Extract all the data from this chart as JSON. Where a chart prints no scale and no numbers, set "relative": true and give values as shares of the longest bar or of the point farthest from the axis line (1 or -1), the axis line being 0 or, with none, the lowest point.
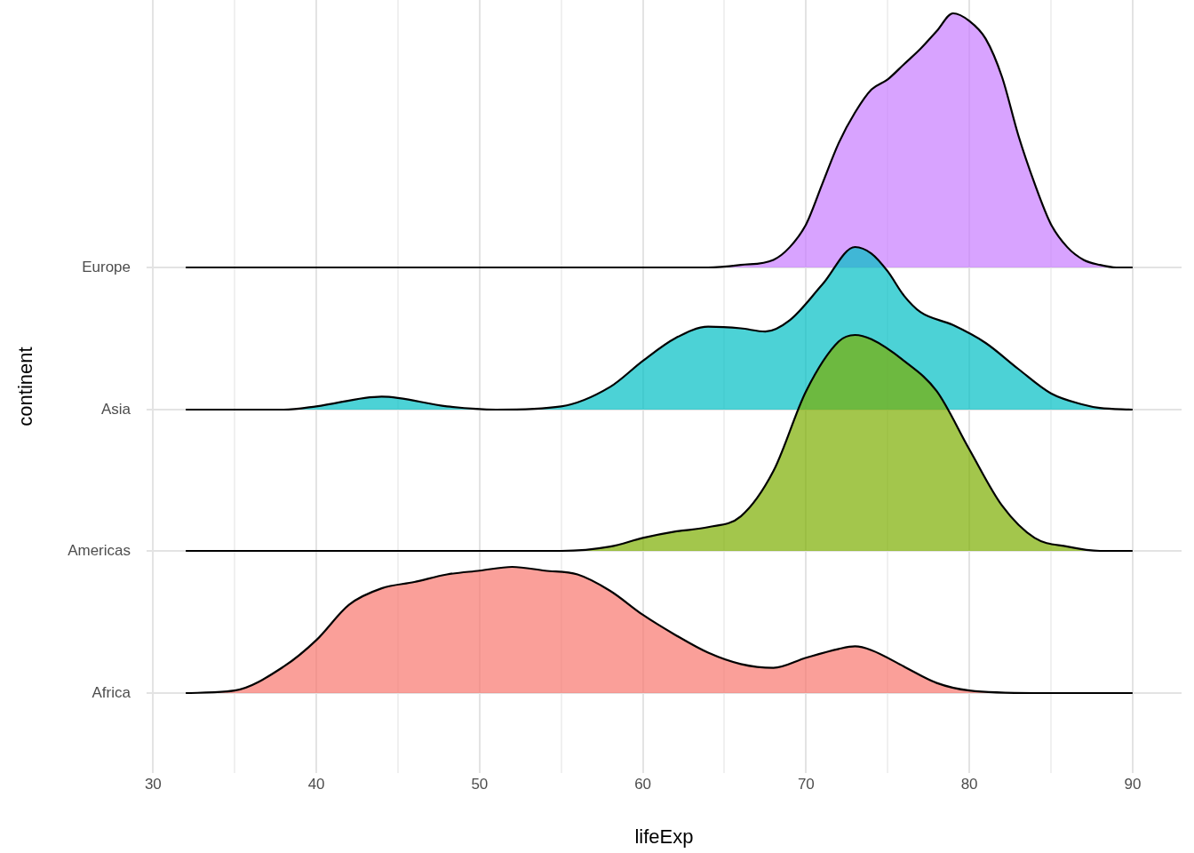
{
  "chart_data": [
    {
      "type": "area",
      "relative": true,
      "tick_labels": false,
      "xlim": [
        29.6,
        93
      ],
      "series": [
        {
          "name": "Europe",
          "color": "#c77cff",
          "x": [
            32,
            60,
            64,
            66,
            68,
            69,
            70,
            71,
            72,
            73,
            74,
            75,
            76,
            77,
            78,
            79,
            80,
            81,
            82,
            83,
            84,
            85,
            86,
            87,
            88,
            89,
            90
          ],
          "values": [
            0,
            0,
            0,
            0.01,
            0.03,
            0.08,
            0.17,
            0.33,
            0.49,
            0.61,
            0.7,
            0.74,
            0.8,
            0.86,
            0.93,
            1,
            0.97,
            0.9,
            0.75,
            0.52,
            0.33,
            0.17,
            0.08,
            0.03,
            0.01,
            0,
            0
          ]
        }
      ]
    },
    {
      "type": "area",
      "relative": true,
      "tick_labels": false,
      "xlim": [
        29.6,
        93
      ],
      "series": [
        {
          "name": "Asia",
          "color": "#00bfc4",
          "x": [
            32,
            38,
            40,
            44,
            48,
            51,
            55,
            58,
            60,
            62,
            64,
            66,
            67.5,
            69,
            71,
            73,
            74,
            75,
            76,
            77,
            79,
            81,
            83,
            85,
            87,
            88,
            90
          ],
          "values": [
            0,
            0,
            0.02,
            0.08,
            0.02,
            0,
            0.02,
            0.14,
            0.3,
            0.44,
            0.51,
            0.5,
            0.48,
            0.55,
            0.77,
            1,
            0.96,
            0.85,
            0.7,
            0.6,
            0.52,
            0.41,
            0.25,
            0.1,
            0.03,
            0.01,
            0
          ]
        }
      ]
    },
    {
      "type": "area",
      "relative": true,
      "tick_labels": false,
      "xlim": [
        29.6,
        93
      ],
      "series": [
        {
          "name": "Americas",
          "color": "#7cae00",
          "x": [
            32,
            55,
            58,
            60,
            62,
            64,
            66,
            68,
            70,
            72,
            73,
            74,
            76,
            78,
            80,
            82,
            84,
            86,
            88,
            90
          ],
          "values": [
            0,
            0,
            0.02,
            0.06,
            0.09,
            0.11,
            0.16,
            0.37,
            0.74,
            0.97,
            1,
            0.98,
            0.88,
            0.74,
            0.47,
            0.21,
            0.06,
            0.02,
            0,
            0
          ]
        }
      ]
    },
    {
      "type": "area",
      "relative": true,
      "tick_labels": "x",
      "grid": "x",
      "xlabel": "lifeExp",
      "ylabel": "continent",
      "xlim": [
        29.6,
        93
      ],
      "xticks": [
        30,
        {
          "value": 35,
          "label": null
        },
        40,
        {
          "value": 45,
          "label": null
        },
        50,
        {
          "value": 55,
          "label": null
        },
        60,
        {
          "value": 65,
          "label": null
        },
        70,
        {
          "value": 75,
          "label": null
        },
        80,
        {
          "value": 85,
          "label": null
        },
        90
      ],
      "series": [
        {
          "name": "Africa",
          "color": "#f8766d",
          "x": [
            32,
            35,
            38,
            40,
            42,
            44,
            46,
            48,
            50,
            52,
            54,
            56,
            58,
            60,
            62,
            64,
            66,
            68,
            70,
            72,
            73,
            74,
            76,
            78,
            80,
            84,
            90
          ],
          "values": [
            0,
            0.02,
            0.21,
            0.42,
            0.7,
            0.83,
            0.88,
            0.94,
            0.97,
            1,
            0.97,
            0.94,
            0.81,
            0.62,
            0.46,
            0.32,
            0.23,
            0.2,
            0.28,
            0.35,
            0.37,
            0.34,
            0.21,
            0.08,
            0.02,
            0,
            0
          ]
        }
      ]
    }
  ]
}
